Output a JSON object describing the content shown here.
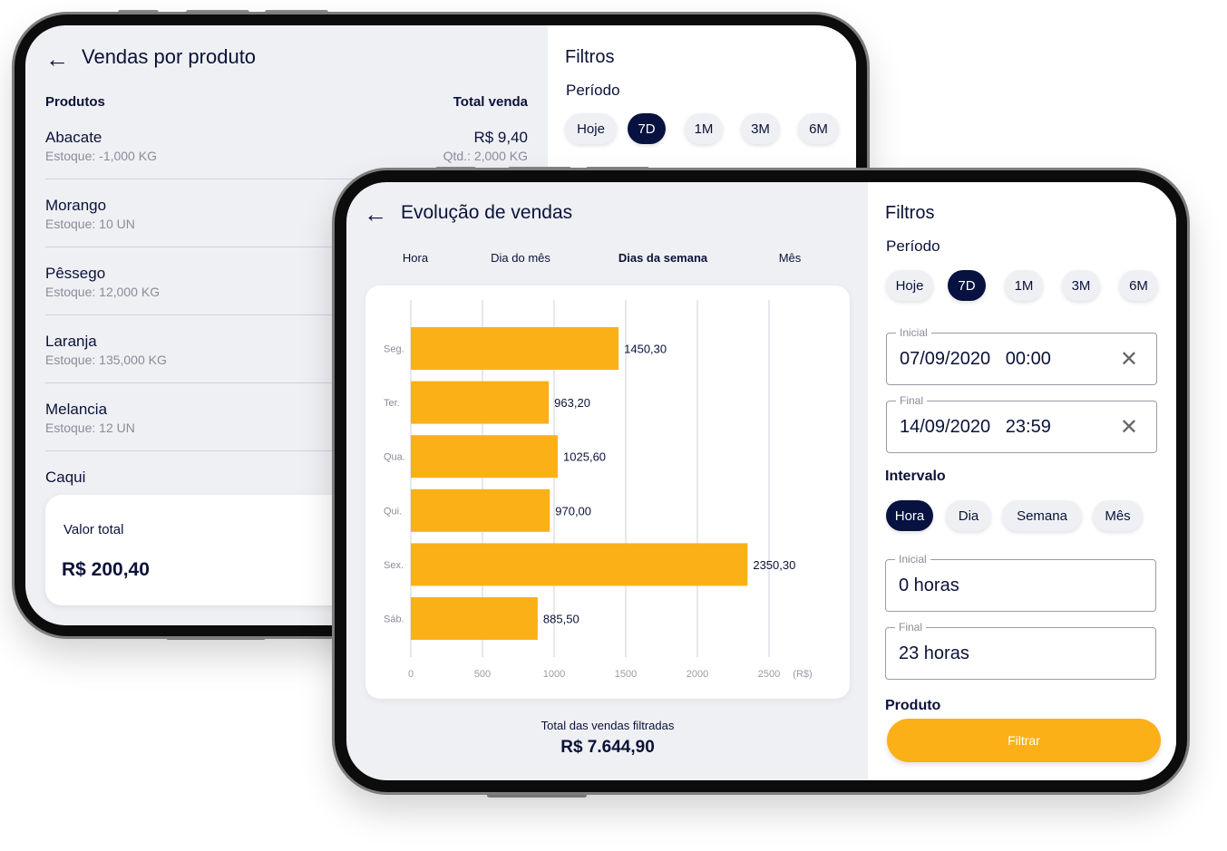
{
  "colors": {
    "accent": "#fbb017",
    "selected": "#071240",
    "text": "#0b1238"
  },
  "back": {
    "title": "Vendas por produto",
    "col_products": "Produtos",
    "col_total": "Total venda",
    "rows": [
      {
        "name": "Abacate",
        "stock": "Estoque: -1,000 KG",
        "total": "R$ 9,40",
        "qty": "Qtd.: 2,000 KG"
      },
      {
        "name": "Morango",
        "stock": "Estoque: 10 UN"
      },
      {
        "name": "Pêssego",
        "stock": "Estoque: 12,000 KG"
      },
      {
        "name": "Laranja",
        "stock": "Estoque: 135,000 KG"
      },
      {
        "name": "Melancia",
        "stock": "Estoque: 12 UN"
      },
      {
        "name": "Caqui"
      }
    ],
    "total_label": "Valor total",
    "total_value": "R$ 200,40",
    "filters": {
      "title": "Filtros",
      "period": "Período",
      "periods": [
        "Hoje",
        "7D",
        "1M",
        "3M",
        "6M"
      ],
      "selected_period": "7D"
    }
  },
  "front": {
    "title": "Evolução de vendas",
    "tabs": [
      "Hora",
      "Dia do mês",
      "Dias da semana",
      "Mês"
    ],
    "active_tab": "Dias da semana",
    "total_label": "Total das vendas filtradas",
    "total_value": "R$ 7.644,90",
    "filters": {
      "title": "Filtros",
      "period": "Período",
      "periods": [
        "Hoje",
        "7D",
        "1M",
        "3M",
        "6M"
      ],
      "selected_period": "7D",
      "start_label": "Inicial",
      "start_value": "07/09/2020   00:00",
      "end_label": "Final",
      "end_value": "14/09/2020   23:59",
      "interval": "Intervalo",
      "intervals": [
        "Hora",
        "Dia",
        "Semana",
        "Mês"
      ],
      "selected_interval": "Hora",
      "int_start_label": "Inicial",
      "int_start_value": "0 horas",
      "int_end_label": "Final",
      "int_end_value": "23 horas",
      "product": "Produto",
      "filter_button": "Filtrar"
    }
  },
  "chart_data": {
    "type": "bar",
    "orientation": "horizontal",
    "categories": [
      "Seg.",
      "Ter.",
      "Qua.",
      "Qui.",
      "Sex.",
      "Sáb."
    ],
    "values": [
      1450.3,
      963.2,
      1025.6,
      970.0,
      2350.3,
      885.5
    ],
    "value_labels": [
      "1450,30",
      "963,20",
      "1025,60",
      "970,00",
      "2350,30",
      "885,50"
    ],
    "xticks": [
      "0",
      "500",
      "1000",
      "1500",
      "2000",
      "2500"
    ],
    "xunit": "(R$)",
    "xlim": [
      0,
      2800
    ],
    "grid": "vertical",
    "color": "#fbb017"
  }
}
